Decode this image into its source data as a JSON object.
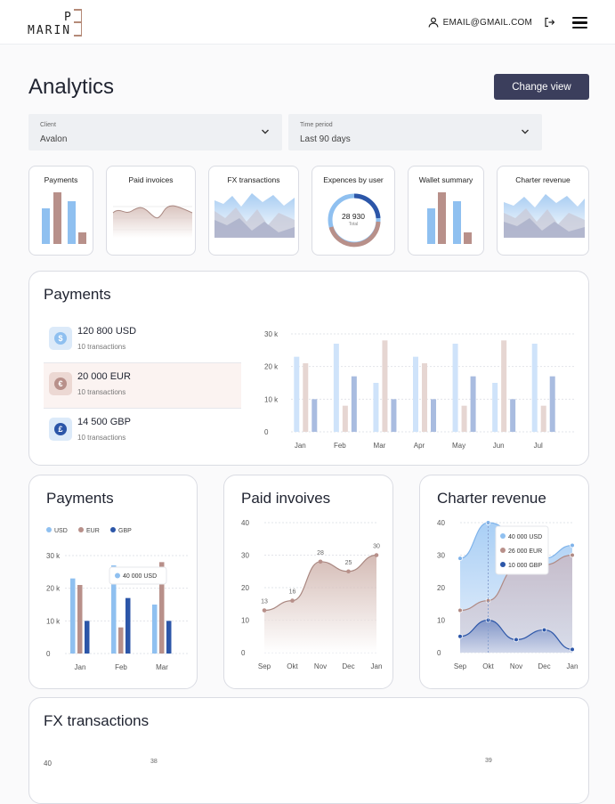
{
  "header": {
    "logo_text": "MARIN",
    "logo_superscript": "P",
    "user_email": "EMAIL@GMAIL.COM",
    "icons": [
      "user-icon",
      "logout-icon",
      "menu-icon"
    ]
  },
  "page": {
    "title": "Analytics",
    "change_view_label": "Change view"
  },
  "filters": {
    "client": {
      "label": "Client",
      "value": "Avalon"
    },
    "period": {
      "label": "Time period",
      "value": "Last 90 days"
    }
  },
  "mini_cards": [
    {
      "title": "Payments"
    },
    {
      "title": "Paid invoices"
    },
    {
      "title": "FX transactions"
    },
    {
      "title": "Expences by user",
      "value": "28 930",
      "caption": "Total"
    },
    {
      "title": "Wallet summary"
    },
    {
      "title": "Charter revenue"
    }
  ],
  "colors": {
    "usd": "#8fc0f0",
    "eur": "#b8908a",
    "gbp": "#2c56a8",
    "accent": "#3b3e5c"
  },
  "payments_card": {
    "title": "Payments",
    "currencies": [
      {
        "amount": "120 800 USD",
        "sub": "10 transactions",
        "symbol": "$"
      },
      {
        "amount": "20 000 EUR",
        "sub": "10 transactions",
        "symbol": "€"
      },
      {
        "amount": "14 500 GBP",
        "sub": "10 transactions",
        "symbol": "£"
      }
    ],
    "chart_data": {
      "type": "bar",
      "categories": [
        "Jan",
        "Feb",
        "Mar",
        "Apr",
        "May",
        "Jun",
        "Jul"
      ],
      "series": [
        {
          "values": [
            23,
            27,
            15,
            23,
            27,
            15,
            27
          ]
        },
        {
          "values": [
            21,
            8,
            28,
            21,
            8,
            28,
            8
          ]
        },
        {
          "values": [
            10,
            17,
            10,
            10,
            17,
            10,
            17
          ]
        }
      ],
      "yticks": [
        "0",
        "10 k",
        "20 k",
        "30 k"
      ],
      "ylim": [
        0,
        30
      ]
    }
  },
  "small_payments": {
    "title": "Payments",
    "legend": [
      "USD",
      "EUR",
      "GBP"
    ],
    "tooltip": "40 000 USD",
    "chart_data": {
      "type": "bar",
      "categories": [
        "Jan",
        "Feb",
        "Mar"
      ],
      "series": [
        {
          "name": "USD",
          "values": [
            23,
            27,
            15
          ]
        },
        {
          "name": "EUR",
          "values": [
            21,
            8,
            28
          ]
        },
        {
          "name": "GBP",
          "values": [
            10,
            17,
            10
          ]
        }
      ],
      "yticks": [
        "0",
        "10 k",
        "20 k",
        "30 k"
      ],
      "ylim": [
        0,
        30
      ]
    }
  },
  "paid_invoices": {
    "title": "Paid invoives",
    "chart_data": {
      "type": "area",
      "categories": [
        "Sep",
        "Okt",
        "Nov",
        "Dec",
        "Jan"
      ],
      "values": [
        13,
        16,
        28,
        25,
        30
      ],
      "labels": [
        "13",
        "16",
        "28",
        "25",
        "30"
      ],
      "yticks": [
        "0",
        "10",
        "20",
        "30",
        "40"
      ],
      "ylim": [
        0,
        40
      ]
    }
  },
  "charter_revenue": {
    "title": "Charter revenue",
    "tooltip": [
      "40 000 USD",
      "26 000 EUR",
      "10 000 GBP"
    ],
    "chart_data": {
      "type": "area",
      "categories": [
        "Sep",
        "Okt",
        "Nov",
        "Dec",
        "Jan"
      ],
      "series": [
        {
          "values": [
            29,
            40,
            37,
            29,
            33
          ]
        },
        {
          "values": [
            13,
            16,
            26,
            27,
            30
          ]
        },
        {
          "values": [
            5,
            10,
            4,
            7,
            1
          ]
        }
      ],
      "yticks": [
        "0",
        "10",
        "20",
        "30",
        "40"
      ],
      "ylim": [
        0,
        40
      ]
    }
  },
  "fx_transactions": {
    "title": "FX transactions",
    "visible_tick": "40",
    "visible_labels": [
      "38",
      "39"
    ]
  }
}
